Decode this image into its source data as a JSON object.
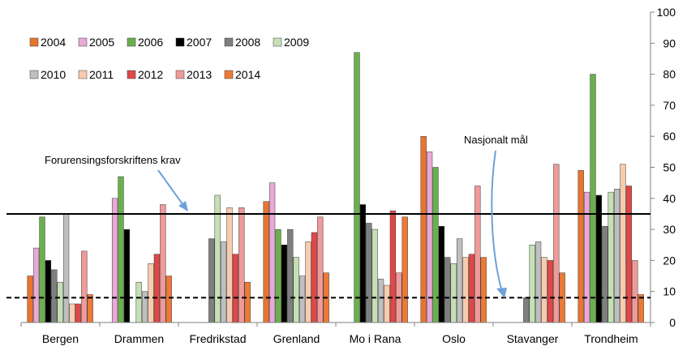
{
  "chart_data": {
    "type": "bar",
    "categories": [
      "Bergen",
      "Drammen",
      "Fredrikstad",
      "Grenland",
      "Mo i Rana",
      "Oslo",
      "Stavanger",
      "Trondheim"
    ],
    "series": [
      {
        "name": "2004",
        "color": "#e8742f",
        "values": [
          15,
          null,
          null,
          39,
          null,
          60,
          null,
          49
        ]
      },
      {
        "name": "2005",
        "color": "#e8a9d8",
        "values": [
          24,
          40,
          null,
          45,
          null,
          55,
          null,
          42
        ]
      },
      {
        "name": "2006",
        "color": "#6ab04c",
        "values": [
          34,
          47,
          null,
          30,
          87,
          50,
          null,
          80
        ]
      },
      {
        "name": "2007",
        "color": "#000000",
        "values": [
          20,
          30,
          null,
          25,
          38,
          31,
          null,
          41
        ]
      },
      {
        "name": "2008",
        "color": "#7f7f7f",
        "values": [
          17,
          null,
          27,
          30,
          32,
          21,
          8,
          31
        ]
      },
      {
        "name": "2009",
        "color": "#c5e0b4",
        "values": [
          13,
          13,
          41,
          21,
          30,
          19,
          25,
          42
        ]
      },
      {
        "name": "2010",
        "color": "#bfbfbf",
        "values": [
          35,
          10,
          26,
          15,
          14,
          27,
          26,
          43
        ]
      },
      {
        "name": "2011",
        "color": "#f8cbad",
        "values": [
          6,
          19,
          37,
          26,
          12,
          21,
          21,
          51
        ]
      },
      {
        "name": "2012",
        "color": "#e04848",
        "values": [
          6,
          22,
          22,
          29,
          36,
          22,
          20,
          44
        ]
      },
      {
        "name": "2013",
        "color": "#f09a9a",
        "values": [
          23,
          38,
          37,
          34,
          16,
          44,
          51,
          20
        ]
      },
      {
        "name": "2014",
        "color": "#ec7a36",
        "values": [
          9,
          15,
          13,
          16,
          34,
          21,
          16,
          9
        ]
      }
    ],
    "ylim": [
      0,
      100
    ],
    "yticks": [
      0,
      10,
      20,
      30,
      40,
      50,
      60,
      70,
      80,
      90,
      100
    ],
    "y_axis_side": "right",
    "grid": false,
    "legend": "top-left",
    "reference_lines": [
      {
        "label": "Forurensingsforskriftens krav",
        "value": 35,
        "style": "solid"
      },
      {
        "label": "Nasjonalt mål",
        "value": 8,
        "style": "dashed"
      }
    ]
  }
}
